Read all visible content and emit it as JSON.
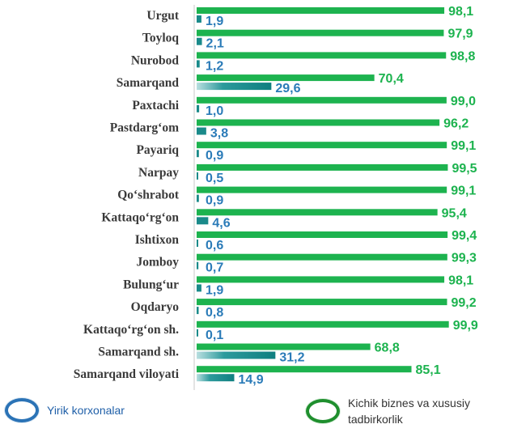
{
  "chart_data": {
    "type": "bar",
    "orientation": "horizontal",
    "categories": [
      "Urgut",
      "Toyloq",
      "Nurobod",
      "Samarqand",
      "Paxtachi",
      "Pastdarg‘om",
      "Payariq",
      "Narpay",
      "Qo‘shrabot",
      "Kattaqo‘rg‘on",
      "Ishtixon",
      "Jomboy",
      "Bulung‘ur",
      "Oqdaryo",
      "Kattaqo‘rg‘on sh.",
      "Samarqand sh.",
      "Samarqand viloyati"
    ],
    "series": [
      {
        "name": "Kichik biznes va xususiy tadbirkorlik",
        "color": "#1db34f",
        "values": [
          98.1,
          97.9,
          98.8,
          70.4,
          99.0,
          96.2,
          99.1,
          99.5,
          99.1,
          95.4,
          99.4,
          99.3,
          98.1,
          99.2,
          99.9,
          68.8,
          85.1
        ],
        "labels": [
          "98,1",
          "97,9",
          "98,8",
          "70,4",
          "99,0",
          "96,2",
          "99,1",
          "99,5",
          "99,1",
          "95,4",
          "99,4",
          "99,3",
          "98,1",
          "99,2",
          "99,9",
          "68,8",
          "85,1"
        ]
      },
      {
        "name": "Yirik korxonalar",
        "color": "#1a8a8a",
        "values": [
          1.9,
          2.1,
          1.2,
          29.6,
          1.0,
          3.8,
          0.9,
          0.5,
          0.9,
          4.6,
          0.6,
          0.7,
          1.9,
          0.8,
          0.1,
          31.2,
          14.9
        ],
        "labels": [
          "1,9",
          "2,1",
          "1,2",
          "29,6",
          "1,0",
          "3,8",
          "0,9",
          "0,5",
          "0,9",
          "4,6",
          "0,6",
          "0,7",
          "1,9",
          "0,8",
          "0,1",
          "31,2",
          "14,9"
        ]
      }
    ],
    "xlim": [
      0,
      100
    ],
    "grid": false,
    "legend": {
      "position": "bottom",
      "items": [
        {
          "label": "Yirik korxonalar",
          "icon": "blue-ring-icon"
        },
        {
          "label_lines": [
            "Kichik biznes va xususiy",
            "tadbirkorlik"
          ],
          "icon": "green-ring-icon"
        }
      ]
    }
  }
}
